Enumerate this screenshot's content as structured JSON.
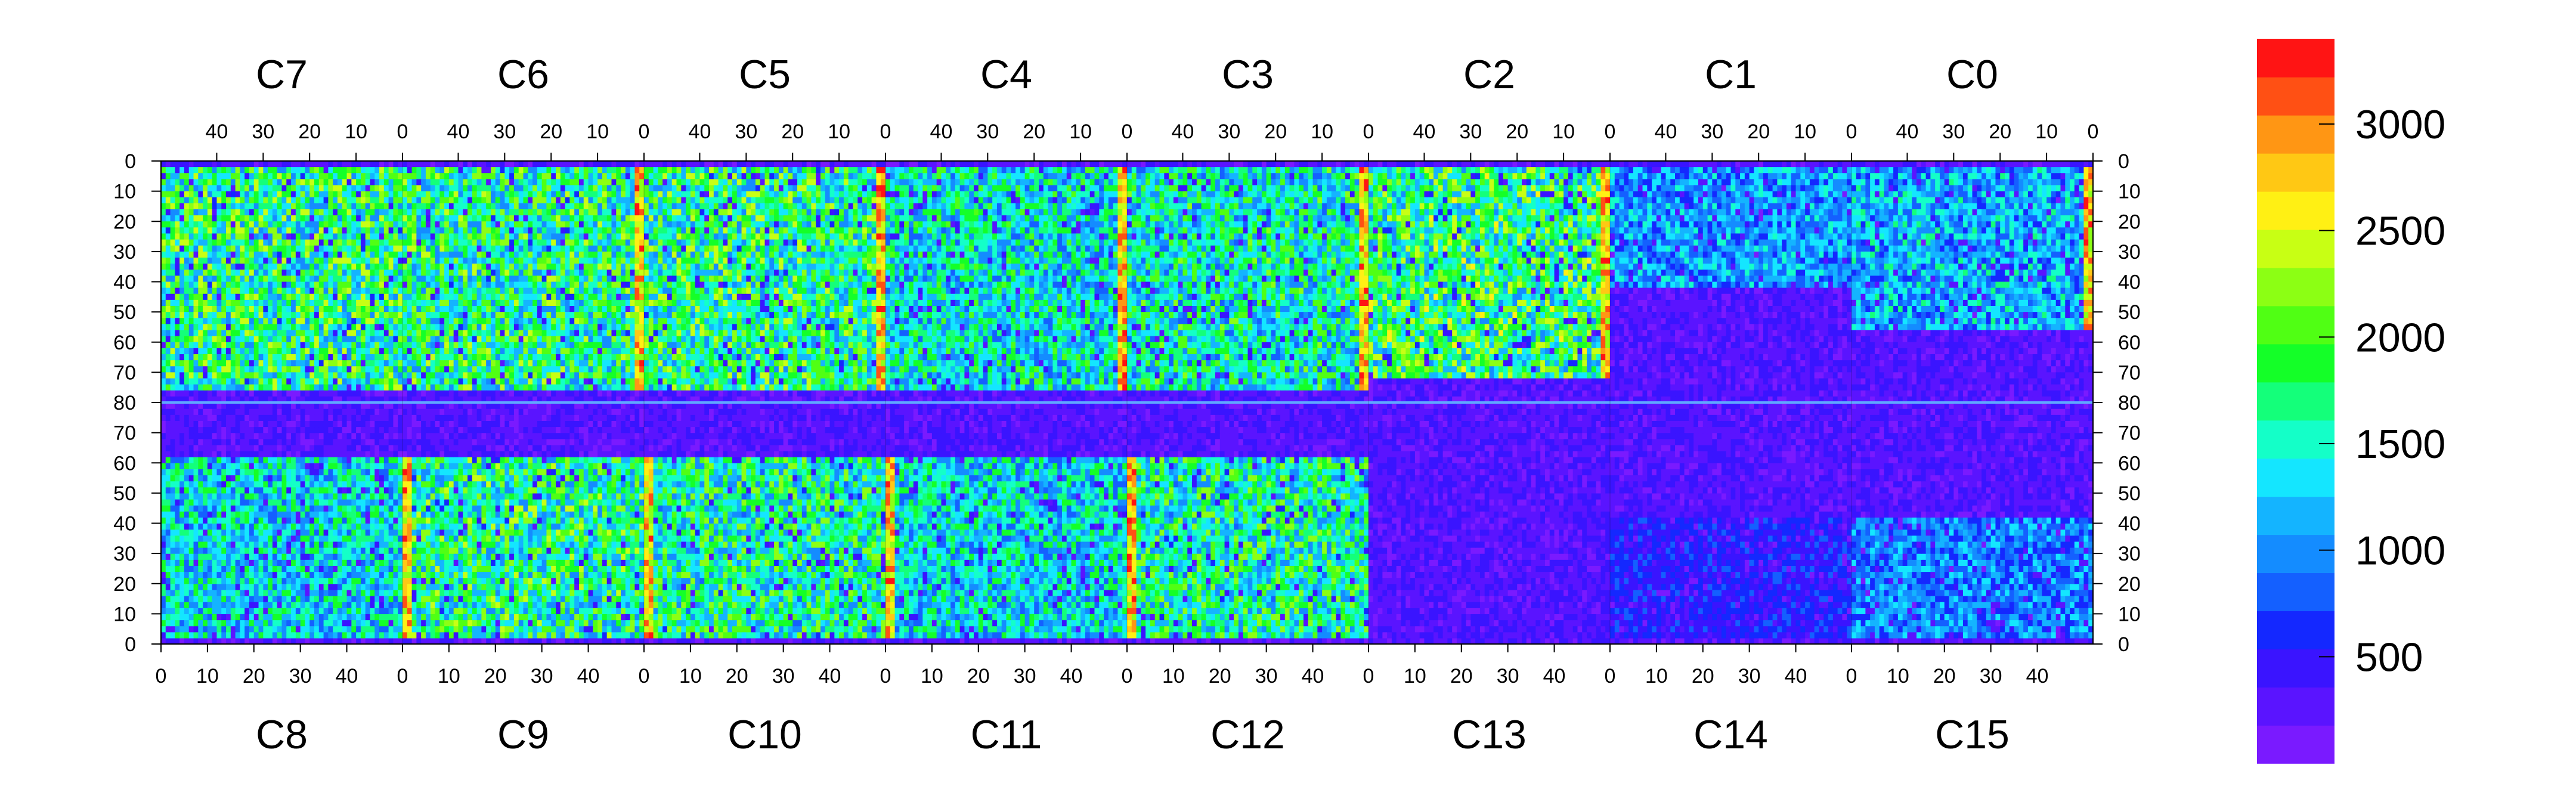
{
  "chart_data": {
    "type": "heatmap",
    "title": "",
    "xlabel": "",
    "ylabel": "",
    "top_chip_labels": [
      "C7",
      "C6",
      "C5",
      "C4",
      "C3",
      "C2",
      "C1",
      "C0"
    ],
    "bottom_chip_labels": [
      "C8",
      "C9",
      "C10",
      "C11",
      "C12",
      "C13",
      "C14",
      "C15"
    ],
    "top_x_ticks": [
      "40",
      "30",
      "20",
      "10",
      "0"
    ],
    "bottom_x_ticks": [
      "0",
      "10",
      "20",
      "30",
      "40"
    ],
    "y_ticks_upper": [
      "0",
      "10",
      "20",
      "30",
      "40",
      "50",
      "60",
      "70",
      "80"
    ],
    "y_ticks_lower": [
      "70",
      "60",
      "50",
      "40",
      "30",
      "20",
      "10",
      "0"
    ],
    "columns_per_chip": 52,
    "rows_per_half": 80,
    "zlim": [
      0,
      3400
    ],
    "colorbar_ticks": [
      "500",
      "1000",
      "1500",
      "2000",
      "2500",
      "3000"
    ],
    "colorbar_values": [
      500,
      1000,
      1500,
      2000,
      2500,
      3000
    ],
    "palette": [
      "#7a1aff",
      "#5a14ff",
      "#3a14ff",
      "#1428ff",
      "#1460ff",
      "#148cff",
      "#14b4ff",
      "#14e6ff",
      "#14ffc8",
      "#14ff7a",
      "#14ff28",
      "#50ff14",
      "#8cff14",
      "#c8ff14",
      "#fff014",
      "#ffc814",
      "#ff9614",
      "#ff5014",
      "#ff1414"
    ],
    "grid": false,
    "legend": "colorbar-right",
    "chip_levels": {
      "C0": {
        "bulk": 1150,
        "active_rows": "1-55",
        "edge_column": "hot"
      },
      "C1": {
        "bulk": 1050,
        "active_rows": "1-40"
      },
      "C2": {
        "bulk": 1750,
        "active_rows": "1-70",
        "edge_column": "hot"
      },
      "C3": {
        "bulk": 1500,
        "active_rows": "1-75",
        "edge_column": "hot"
      },
      "C4": {
        "bulk": 1400,
        "active_rows": "1-75",
        "edge_column": "hot"
      },
      "C5": {
        "bulk": 1700,
        "active_rows": "1-75",
        "edge_column": "hot"
      },
      "C6": {
        "bulk": 1650,
        "active_rows": "1-75",
        "edge_column": "hot"
      },
      "C7": {
        "bulk": 1700,
        "active_rows": "1-75"
      },
      "C8": {
        "bulk": 1350,
        "active_rows": "1-60"
      },
      "C9": {
        "bulk": 1650,
        "active_rows": "1-60",
        "edge_column": "hot"
      },
      "C10": {
        "bulk": 1600,
        "active_rows": "1-60",
        "edge_column": "hot"
      },
      "C11": {
        "bulk": 1350,
        "active_rows": "1-60",
        "edge_column": "hot"
      },
      "C12": {
        "bulk": 1600,
        "active_rows": "1-60",
        "edge_column": "hot"
      },
      "C13": {
        "bulk": 250,
        "active_rows": "none"
      },
      "C14": {
        "bulk": 550,
        "active_rows": "1-40"
      },
      "C15": {
        "bulk": 950,
        "active_rows": "1-40"
      }
    }
  }
}
